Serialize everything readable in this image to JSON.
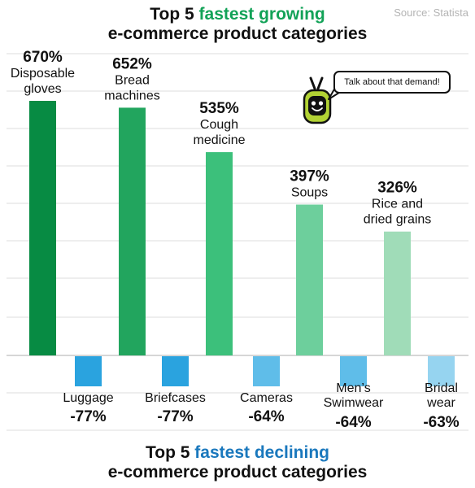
{
  "header": {
    "title_prefix": "Top 5",
    "title_accent": "fastest growing",
    "title_line2": "e-commerce product categories",
    "source": "Source: Statista"
  },
  "footer": {
    "title_prefix": "Top 5",
    "title_accent": "fastest declining",
    "title_line2": "e-commerce product categories"
  },
  "callout": {
    "text": "Talk about that demand!"
  },
  "colors": {
    "growth": [
      "#078b43",
      "#22a55e",
      "#3cc07b",
      "#6dcf9c",
      "#a0dcb8"
    ],
    "decline": [
      "#2aa3df",
      "#2aa3df",
      "#5fbde9",
      "#5fbde9",
      "#96d4f0"
    ],
    "accent_green": "#12a257",
    "accent_blue": "#1a78bd",
    "grid": "#dddddd"
  },
  "chart_data": {
    "type": "bar",
    "series": [
      {
        "categories": [
          [
            "Disposable",
            "gloves"
          ],
          [
            "Bread",
            "machines"
          ],
          [
            "Cough",
            "medicine"
          ],
          [
            "Soups"
          ],
          [
            "Rice and",
            "dried grains"
          ]
        ],
        "values": [
          670,
          652,
          535,
          397,
          326
        ],
        "labels": [
          "670%",
          "652%",
          "535%",
          "397%",
          "326%"
        ]
      },
      {
        "categories": [
          [
            "Luggage"
          ],
          [
            "Briefcases"
          ],
          [
            "Cameras"
          ],
          [
            "Men’s",
            "Swimwear"
          ],
          [
            "Bridal",
            "wear"
          ]
        ],
        "values": [
          -77,
          -77,
          -64,
          -64,
          -63
        ],
        "labels": [
          "-77%",
          "-77%",
          "-64%",
          "-64%",
          "-63%"
        ]
      }
    ],
    "grid": true
  }
}
